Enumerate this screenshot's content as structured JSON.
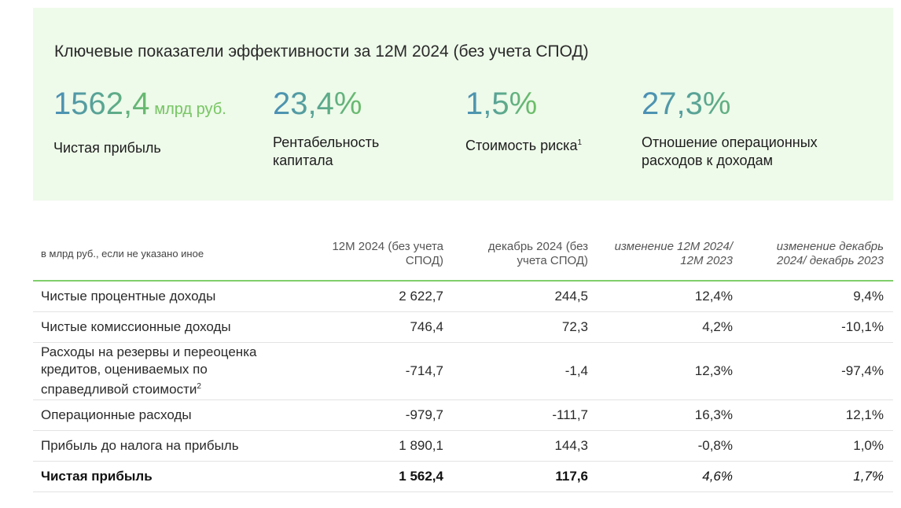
{
  "kpi_panel": {
    "title": "Ключевые показатели эффективности за 12М 2024 (без учета СПОД)",
    "items": [
      {
        "value": "1562,4",
        "unit": "млрд руб.",
        "label": "Чистая прибыль"
      },
      {
        "value": "23,4%",
        "label": "Рентабельность капитала"
      },
      {
        "value": "1,5%",
        "label": "Стоимость риска",
        "footnote": "1"
      },
      {
        "value": "27,3%",
        "label": "Отношение операционных расходов к доходам"
      }
    ]
  },
  "table": {
    "header": {
      "unit_note": "в млрд руб., если не указано иное",
      "col1": "12М 2024 (без учета СПОД)",
      "col2": "декабрь 2024 (без учета СПОД)",
      "col3": "изменение 12М 2024/ 12М 2023",
      "col4": "изменение декабрь 2024/ декабрь 2023"
    },
    "rows": [
      {
        "name": "Чистые процентные доходы",
        "v1": "2 622,7",
        "v2": "244,5",
        "v3": "12,4%",
        "v4": "9,4%"
      },
      {
        "name": "Чистые комиссионные доходы",
        "v1": "746,4",
        "v2": "72,3",
        "v3": "4,2%",
        "v4": "-10,1%"
      },
      {
        "name": "Расходы на резервы и переоценка кредитов, оцениваемых по справедливой стоимости",
        "footnote": "2",
        "v1": "-714,7",
        "v2": "-1,4",
        "v3": "12,3%",
        "v4": "-97,4%"
      },
      {
        "name": "Операционные расходы",
        "v1": "-979,7",
        "v2": "-111,7",
        "v3": "16,3%",
        "v4": "12,1%"
      },
      {
        "name": "Прибыль до налога на прибыль",
        "v1": "1 890,1",
        "v2": "144,3",
        "v3": "-0,8%",
        "v4": "1,0%"
      },
      {
        "name": "Чистая прибыль",
        "v1": "1 562,4",
        "v2": "117,6",
        "v3": "4,6%",
        "v4": "1,7%"
      }
    ]
  }
}
